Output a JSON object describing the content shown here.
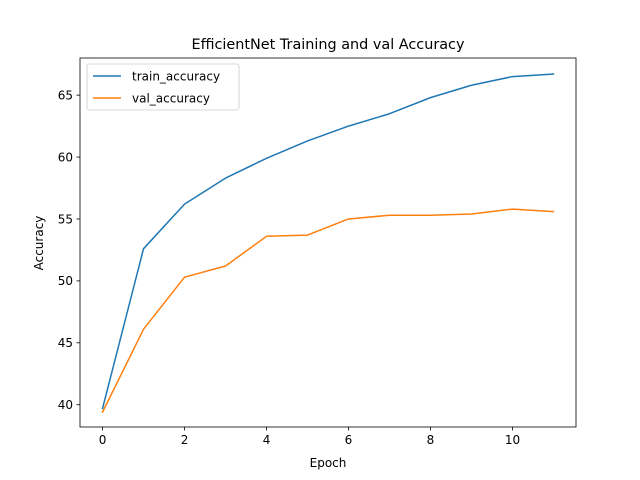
{
  "chart_data": {
    "type": "line",
    "title": "EfficientNet Training and val Accuracy",
    "xlabel": "Epoch",
    "ylabel": "Accuracy",
    "x": [
      0,
      1,
      2,
      3,
      4,
      5,
      6,
      7,
      8,
      9,
      10,
      11
    ],
    "xlim": [
      -0.55,
      11.55
    ],
    "ylim": [
      38.2,
      68.0
    ],
    "xticks": [
      0,
      2,
      4,
      6,
      8,
      10
    ],
    "yticks": [
      40,
      45,
      50,
      55,
      60,
      65
    ],
    "grid": false,
    "legend_position": "top-left",
    "series": [
      {
        "name": "train_accuracy",
        "color": "#1f77b4",
        "values": [
          39.7,
          52.6,
          56.2,
          58.3,
          59.9,
          61.3,
          62.5,
          63.5,
          64.8,
          65.8,
          66.5,
          66.7
        ]
      },
      {
        "name": "val_accuracy",
        "color": "#ff7f0e",
        "values": [
          39.4,
          46.1,
          50.3,
          51.2,
          53.6,
          53.7,
          55.0,
          55.3,
          55.3,
          55.4,
          55.8,
          55.6
        ]
      }
    ]
  }
}
